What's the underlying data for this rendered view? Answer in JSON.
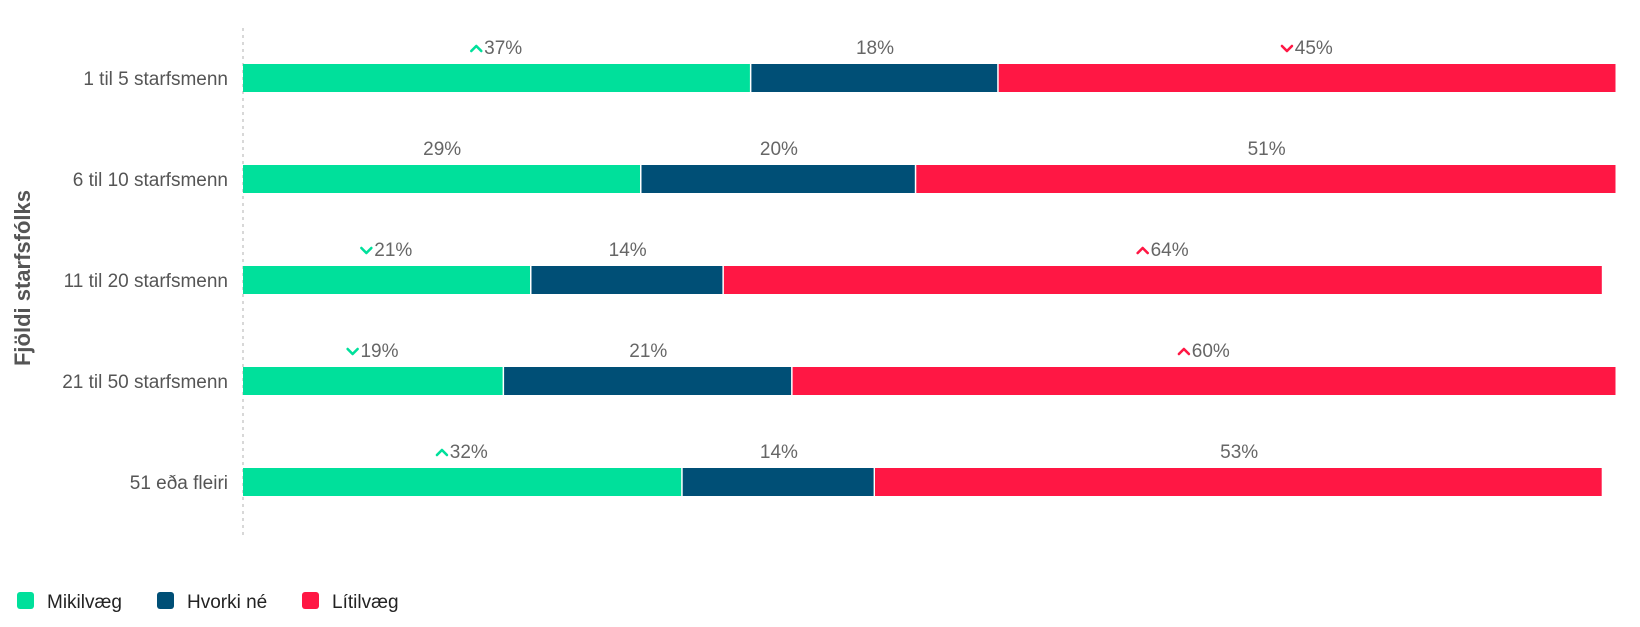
{
  "chart_data": {
    "type": "bar",
    "orientation": "horizontal",
    "stacked": "percent",
    "ylabel": "Fjöldi starfsfólks",
    "xlabel": "",
    "categories": [
      "1 til 5 starfsmenn",
      "6 til 10 starfsmenn",
      "11 til 20 starfsmenn",
      "21 til 50 starfsmenn",
      "51 eða fleiri"
    ],
    "series": [
      {
        "name": "Mikilvæg",
        "color": "#00E09B",
        "values": [
          37,
          29,
          21,
          19,
          32
        ],
        "labels": [
          "37%",
          "29%",
          "21%",
          "19%",
          "32%"
        ],
        "trends": [
          "up",
          "",
          "down",
          "down",
          "up"
        ]
      },
      {
        "name": "Hvorki né",
        "color": "#004F76",
        "values": [
          18,
          20,
          14,
          21,
          14
        ],
        "labels": [
          "18%",
          "20%",
          "14%",
          "21%",
          "14%"
        ],
        "trends": [
          "",
          "",
          "",
          "",
          ""
        ]
      },
      {
        "name": "Lítilvæg",
        "color": "#FF1744",
        "values": [
          45,
          51,
          64,
          60,
          53
        ],
        "labels": [
          "45%",
          "51%",
          "64%",
          "60%",
          "53%"
        ],
        "trends": [
          "down",
          "",
          "up",
          "up",
          ""
        ]
      }
    ],
    "legend": "bottom-left",
    "grid": false
  }
}
